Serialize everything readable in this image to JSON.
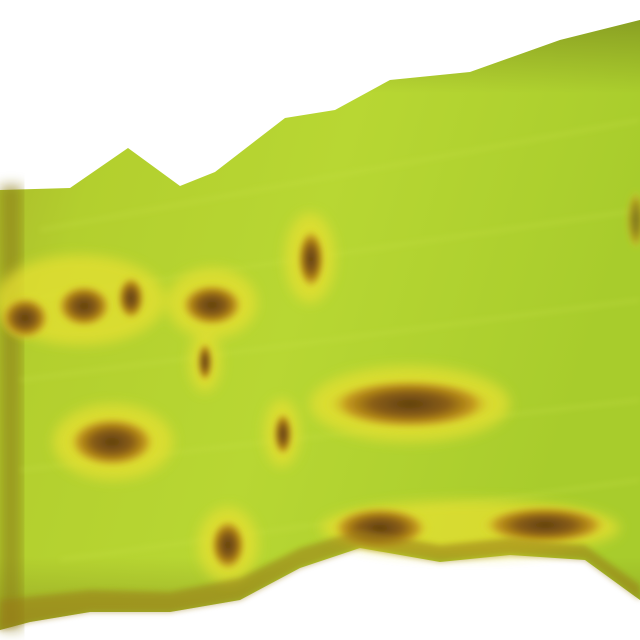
{
  "image": {
    "subject": "leaf-with-brown-lesions",
    "colors": {
      "background": "#ffffff",
      "leaf_light": "#b9d832",
      "leaf_mid": "#a4c52a",
      "leaf_edge": "#7d8a1c",
      "halo": "#e4e12e",
      "lesion_ring": "#b9860f",
      "lesion_core": "#6d4a12"
    }
  }
}
